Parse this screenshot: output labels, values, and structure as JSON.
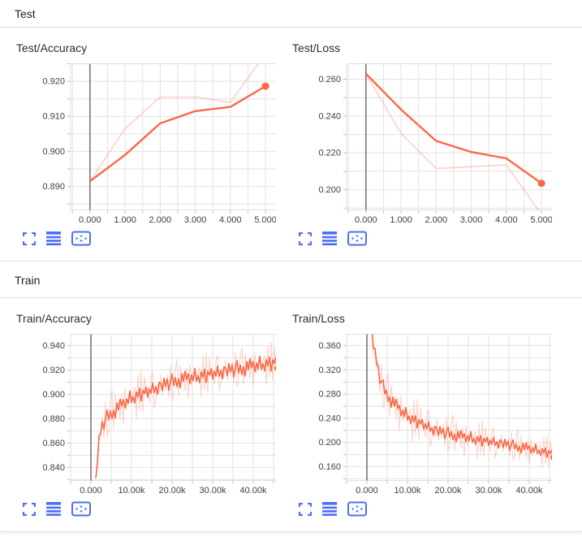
{
  "theme": {
    "line_color": "#fa6847",
    "raw_opacity": 0.27,
    "icon_color": "#4c6ef2",
    "grid_color": "#e2e2e2",
    "border_color": "#dfdfdf",
    "tick_color": "#bdbdbd",
    "zero_line_color": "#757575",
    "axis_text_color": "#3c4043",
    "title_color": "#2e2e2e",
    "header_color": "#202124",
    "divider_color": "#dadce0"
  },
  "toolbar_icons": [
    {
      "name": "expand-icon",
      "title": "Expand card"
    },
    {
      "name": "runs-icon",
      "title": "View runs"
    },
    {
      "name": "fit-data-icon",
      "title": "Fit domain to data"
    }
  ],
  "sections": [
    {
      "title": "Test",
      "chart_ids": [
        0,
        1
      ]
    },
    {
      "title": "Train",
      "chart_ids": [
        2,
        3
      ]
    }
  ],
  "noise_pattern": [
    0.32,
    -0.58,
    0.76,
    -0.21,
    0.55,
    -0.83,
    0.18,
    0.92,
    -0.47,
    0.38,
    -0.72,
    0.12,
    -0.95,
    0.63,
    -0.3,
    0.84,
    -0.15,
    0.49,
    -0.66,
    0.27,
    -0.41,
    0.97,
    -0.54,
    0.08,
    -0.77,
    0.44,
    -0.25,
    0.68,
    -0.88,
    0.35,
    -0.1,
    0.59,
    -0.62,
    0.22,
    -0.36,
    0.73,
    -0.48,
    0.16,
    -0.8,
    0.51
  ],
  "chart_data": [
    {
      "type": "line",
      "title": "Test/Accuracy",
      "x": {
        "domain": [
          -0.55,
          5.46
        ],
        "minor_step": 0.5,
        "zero_line": true,
        "majors": [
          {
            "v": 0,
            "label": "0.000"
          },
          {
            "v": 1,
            "label": "1.000"
          },
          {
            "v": 2,
            "label": "2.000"
          },
          {
            "v": 3,
            "label": "3.000"
          },
          {
            "v": 4,
            "label": "4.000"
          },
          {
            "v": 5,
            "label": "5.000"
          }
        ]
      },
      "y": {
        "domain": [
          0.8833,
          0.925
        ],
        "minor_step": 0.005,
        "majors": [
          {
            "v": 0.89,
            "label": "0.890"
          },
          {
            "v": 0.9,
            "label": "0.900"
          },
          {
            "v": 0.91,
            "label": "0.910"
          },
          {
            "v": 0.92,
            "label": "0.920"
          }
        ]
      },
      "series": {
        "kind": "points",
        "raw": [
          [
            0,
            0.8915
          ],
          [
            1,
            0.9065
          ],
          [
            2,
            0.9155
          ],
          [
            3,
            0.9155
          ],
          [
            4,
            0.914
          ],
          [
            5,
            0.928
          ]
        ],
        "smoothed": [
          [
            0,
            0.8915
          ],
          [
            1,
            0.899
          ],
          [
            2,
            0.908
          ],
          [
            3,
            0.9115
          ],
          [
            4,
            0.9127
          ],
          [
            5,
            0.9186
          ]
        ]
      }
    },
    {
      "type": "line",
      "title": "Test/Loss",
      "x": {
        "domain": [
          -0.55,
          5.46
        ],
        "minor_step": 0.5,
        "zero_line": true,
        "majors": [
          {
            "v": 0,
            "label": "0.000"
          },
          {
            "v": 1,
            "label": "1.000"
          },
          {
            "v": 2,
            "label": "2.000"
          },
          {
            "v": 3,
            "label": "3.000"
          },
          {
            "v": 4,
            "label": "4.000"
          },
          {
            "v": 5,
            "label": "5.000"
          }
        ]
      },
      "y": {
        "domain": [
          0.189,
          0.2684
        ],
        "minor_step": 0.01,
        "majors": [
          {
            "v": 0.2,
            "label": "0.200"
          },
          {
            "v": 0.22,
            "label": "0.220"
          },
          {
            "v": 0.24,
            "label": "0.240"
          },
          {
            "v": 0.26,
            "label": "0.260"
          }
        ]
      },
      "series": {
        "kind": "points",
        "raw": [
          [
            0,
            0.263
          ],
          [
            1,
            0.2305
          ],
          [
            2,
            0.2115
          ],
          [
            3,
            0.2125
          ],
          [
            4,
            0.2135
          ],
          [
            5,
            0.1865
          ]
        ],
        "smoothed": [
          [
            0,
            0.263
          ],
          [
            1,
            0.2435
          ],
          [
            2,
            0.2265
          ],
          [
            3,
            0.2205
          ],
          [
            4,
            0.217
          ],
          [
            5,
            0.2035
          ]
        ]
      }
    },
    {
      "type": "line",
      "title": "Train/Accuracy",
      "x": {
        "domain": [
          -5000,
          47000
        ],
        "minor_step": 5000,
        "zero_line": true,
        "majors": [
          {
            "v": 0,
            "label": "0.000"
          },
          {
            "v": 10000,
            "label": "10.00k"
          },
          {
            "v": 20000,
            "label": "20.00k"
          },
          {
            "v": 30000,
            "label": "30.00k"
          },
          {
            "v": 40000,
            "label": "40.00k"
          }
        ]
      },
      "y": {
        "domain": [
          0.8293,
          0.9493
        ],
        "minor_step": 0.01,
        "majors": [
          {
            "v": 0.84,
            "label": "0.840"
          },
          {
            "v": 0.86,
            "label": "0.860"
          },
          {
            "v": 0.88,
            "label": "0.880"
          },
          {
            "v": 0.9,
            "label": "0.900"
          },
          {
            "v": 0.92,
            "label": "0.920"
          },
          {
            "v": 0.94,
            "label": "0.940"
          }
        ]
      },
      "series": {
        "kind": "synth",
        "x_start": 1200,
        "x_end": 46000,
        "dx": 400,
        "trend": [
          [
            1200,
            0.829
          ],
          [
            1600,
            0.8475
          ],
          [
            2000,
            0.861
          ],
          [
            2400,
            0.8695
          ],
          [
            3000,
            0.8762
          ],
          [
            4000,
            0.8808
          ],
          [
            5000,
            0.8845
          ],
          [
            6000,
            0.8872
          ],
          [
            7000,
            0.8898
          ],
          [
            8000,
            0.8922
          ],
          [
            9000,
            0.8948
          ],
          [
            10000,
            0.897
          ],
          [
            12000,
            0.9002
          ],
          [
            14000,
            0.9022
          ],
          [
            15000,
            0.9038
          ],
          [
            16000,
            0.9052
          ],
          [
            18000,
            0.9078
          ],
          [
            20000,
            0.9102
          ],
          [
            22000,
            0.9122
          ],
          [
            25000,
            0.914
          ],
          [
            28000,
            0.9158
          ],
          [
            30000,
            0.917
          ],
          [
            33000,
            0.9192
          ],
          [
            36000,
            0.9208
          ],
          [
            40000,
            0.9232
          ],
          [
            43000,
            0.925
          ],
          [
            46000,
            0.9262
          ]
        ],
        "smooth_amp": [
          0.0068,
          0.0075
        ],
        "raw_amp": [
          0.02,
          0.0175
        ]
      }
    },
    {
      "type": "line",
      "title": "Train/Loss",
      "x": {
        "domain": [
          -5000,
          47000
        ],
        "minor_step": 5000,
        "zero_line": true,
        "majors": [
          {
            "v": 0,
            "label": "0.000"
          },
          {
            "v": 10000,
            "label": "10.00k"
          },
          {
            "v": 20000,
            "label": "20.00k"
          },
          {
            "v": 30000,
            "label": "30.00k"
          },
          {
            "v": 40000,
            "label": "40.00k"
          }
        ]
      },
      "y": {
        "domain": [
          0.1373,
          0.3787
        ],
        "minor_step": 0.02,
        "majors": [
          {
            "v": 0.16,
            "label": "0.160"
          },
          {
            "v": 0.2,
            "label": "0.200"
          },
          {
            "v": 0.24,
            "label": "0.240"
          },
          {
            "v": 0.28,
            "label": "0.280"
          },
          {
            "v": 0.32,
            "label": "0.320"
          },
          {
            "v": 0.36,
            "label": "0.360"
          }
        ]
      },
      "series": {
        "kind": "synth",
        "x_start": 1200,
        "x_end": 46000,
        "dx": 400,
        "trend": [
          [
            1200,
            0.386
          ],
          [
            1600,
            0.3625
          ],
          [
            2000,
            0.3455
          ],
          [
            2400,
            0.3325
          ],
          [
            3000,
            0.3125
          ],
          [
            3500,
            0.3005
          ],
          [
            4000,
            0.2915
          ],
          [
            5000,
            0.2788
          ],
          [
            6000,
            0.2702
          ],
          [
            7000,
            0.2625
          ],
          [
            8000,
            0.2552
          ],
          [
            9000,
            0.2488
          ],
          [
            10000,
            0.2438
          ],
          [
            12000,
            0.2358
          ],
          [
            14000,
            0.2295
          ],
          [
            16000,
            0.2228
          ],
          [
            18000,
            0.2178
          ],
          [
            20000,
            0.2148
          ],
          [
            22000,
            0.2118
          ],
          [
            25000,
            0.2078
          ],
          [
            28000,
            0.2038
          ],
          [
            30000,
            0.2018
          ],
          [
            33000,
            0.1988
          ],
          [
            36000,
            0.1948
          ],
          [
            40000,
            0.1898
          ],
          [
            43000,
            0.1858
          ],
          [
            46000,
            0.1815
          ]
        ],
        "smooth_amp": [
          0.013,
          0.0095
        ],
        "raw_amp": [
          0.042,
          0.027
        ]
      }
    }
  ]
}
